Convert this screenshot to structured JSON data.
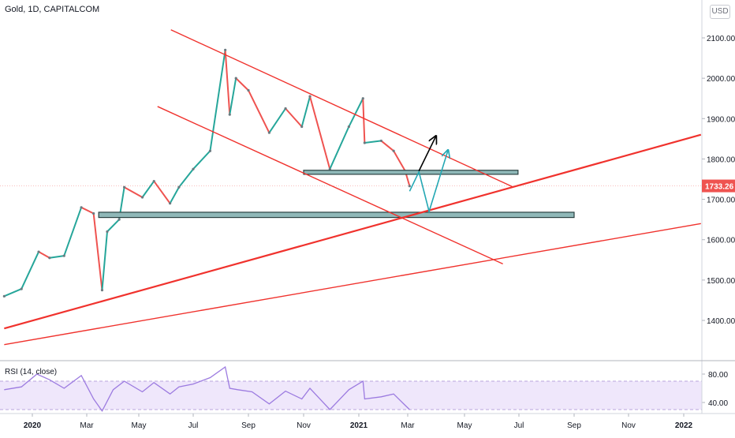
{
  "header": {
    "symbol": "Gold, 1D, CAPITALCOM",
    "currency": "USD"
  },
  "rsi": {
    "label": "RSI (14, close)"
  },
  "colors": {
    "up": "#26a69a",
    "down": "#ef5350",
    "trend": "#f0322d",
    "zone_fill": "#8fb8b8",
    "zone_stroke": "#2a4040",
    "projection": "#23a7b3",
    "rsi_line": "#9c7be0",
    "rsi_band": "#efe7fb",
    "price_badge": "#ef5350"
  },
  "chart_data": {
    "type": "candlestick",
    "title": "Gold, 1D, CAPITALCOM",
    "x_tick_labels": [
      "2020",
      "Mar",
      "May",
      "Jul",
      "Sep",
      "Nov",
      "2021",
      "Mar",
      "May",
      "Jul",
      "Sep",
      "Nov",
      "2022"
    ],
    "y_tick_labels": [
      "1400.00",
      "1500.00",
      "1600.00",
      "1700.00",
      "1800.00",
      "1900.00",
      "2000.00",
      "2100.00"
    ],
    "ylim": [
      1300,
      2200
    ],
    "last_price": "1733.26",
    "price_path": [
      [
        "2019-12-01",
        1460
      ],
      [
        "2019-12-20",
        1478
      ],
      [
        "2020-01-08",
        1570
      ],
      [
        "2020-01-20",
        1555
      ],
      [
        "2020-02-05",
        1560
      ],
      [
        "2020-02-24",
        1680
      ],
      [
        "2020-03-09",
        1665
      ],
      [
        "2020-03-19",
        1475
      ],
      [
        "2020-03-25",
        1620
      ],
      [
        "2020-04-08",
        1650
      ],
      [
        "2020-04-14",
        1730
      ],
      [
        "2020-05-05",
        1705
      ],
      [
        "2020-05-18",
        1745
      ],
      [
        "2020-06-05",
        1690
      ],
      [
        "2020-06-15",
        1730
      ],
      [
        "2020-07-01",
        1775
      ],
      [
        "2020-07-20",
        1820
      ],
      [
        "2020-08-06",
        2070
      ],
      [
        "2020-08-11",
        1910
      ],
      [
        "2020-08-18",
        2000
      ],
      [
        "2020-09-01",
        1970
      ],
      [
        "2020-09-24",
        1865
      ],
      [
        "2020-10-12",
        1925
      ],
      [
        "2020-10-30",
        1880
      ],
      [
        "2020-11-08",
        1955
      ],
      [
        "2020-11-30",
        1775
      ],
      [
        "2020-12-21",
        1880
      ],
      [
        "2021-01-06",
        1950
      ],
      [
        "2021-01-08",
        1840
      ],
      [
        "2021-01-28",
        1845
      ],
      [
        "2021-02-12",
        1820
      ],
      [
        "2021-02-26",
        1770
      ],
      [
        "2021-03-03",
        1733
      ]
    ],
    "support_zones": [
      {
        "from": "2020-11-01",
        "to": "2021-06-30",
        "low": 1762,
        "high": 1772
      },
      {
        "from": "2020-03-15",
        "to": "2021-09-01",
        "low": 1655,
        "high": 1668
      }
    ],
    "trendlines": [
      {
        "from": [
          "2020-06-06",
          2120
        ],
        "to": [
          "2021-06-25",
          1730
        ]
      },
      {
        "from": [
          "2020-05-22",
          1930
        ],
        "to": [
          "2021-06-13",
          1540
        ]
      },
      {
        "from": [
          "2019-12-01",
          1380
        ],
        "to": [
          "2022-01-20",
          1860
        ]
      },
      {
        "from": [
          "2019-12-01",
          1340
        ],
        "to": [
          "2022-01-20",
          1640
        ]
      }
    ],
    "projection_paths": [
      [
        [
          "2021-03-03",
          1720
        ],
        [
          "2021-03-13",
          1768
        ],
        [
          "2021-03-24",
          1670
        ],
        [
          "2021-04-13",
          1820
        ]
      ]
    ],
    "arrow_path": [
      [
        "2021-03-13",
        1770
      ],
      [
        "2021-03-31",
        1855
      ]
    ],
    "rsi": {
      "levels": [
        "80.00",
        "40.00"
      ],
      "ylim": [
        20,
        100
      ],
      "band": [
        30,
        70
      ],
      "values": [
        [
          "2019-12-01",
          58
        ],
        [
          "2019-12-20",
          62
        ],
        [
          "2020-01-06",
          80
        ],
        [
          "2020-01-20",
          72
        ],
        [
          "2020-02-05",
          60
        ],
        [
          "2020-02-24",
          78
        ],
        [
          "2020-03-09",
          45
        ],
        [
          "2020-03-19",
          28
        ],
        [
          "2020-04-01",
          58
        ],
        [
          "2020-04-14",
          70
        ],
        [
          "2020-05-05",
          55
        ],
        [
          "2020-05-18",
          68
        ],
        [
          "2020-06-05",
          52
        ],
        [
          "2020-06-15",
          62
        ],
        [
          "2020-07-01",
          66
        ],
        [
          "2020-07-20",
          75
        ],
        [
          "2020-08-06",
          90
        ],
        [
          "2020-08-11",
          60
        ],
        [
          "2020-08-20",
          58
        ],
        [
          "2020-09-05",
          55
        ],
        [
          "2020-09-24",
          38
        ],
        [
          "2020-10-12",
          56
        ],
        [
          "2020-10-30",
          45
        ],
        [
          "2020-11-08",
          60
        ],
        [
          "2020-11-30",
          30
        ],
        [
          "2020-12-21",
          58
        ],
        [
          "2021-01-06",
          70
        ],
        [
          "2021-01-08",
          45
        ],
        [
          "2021-01-28",
          48
        ],
        [
          "2021-02-12",
          52
        ],
        [
          "2021-02-26",
          36
        ],
        [
          "2021-03-03",
          30
        ]
      ]
    }
  }
}
